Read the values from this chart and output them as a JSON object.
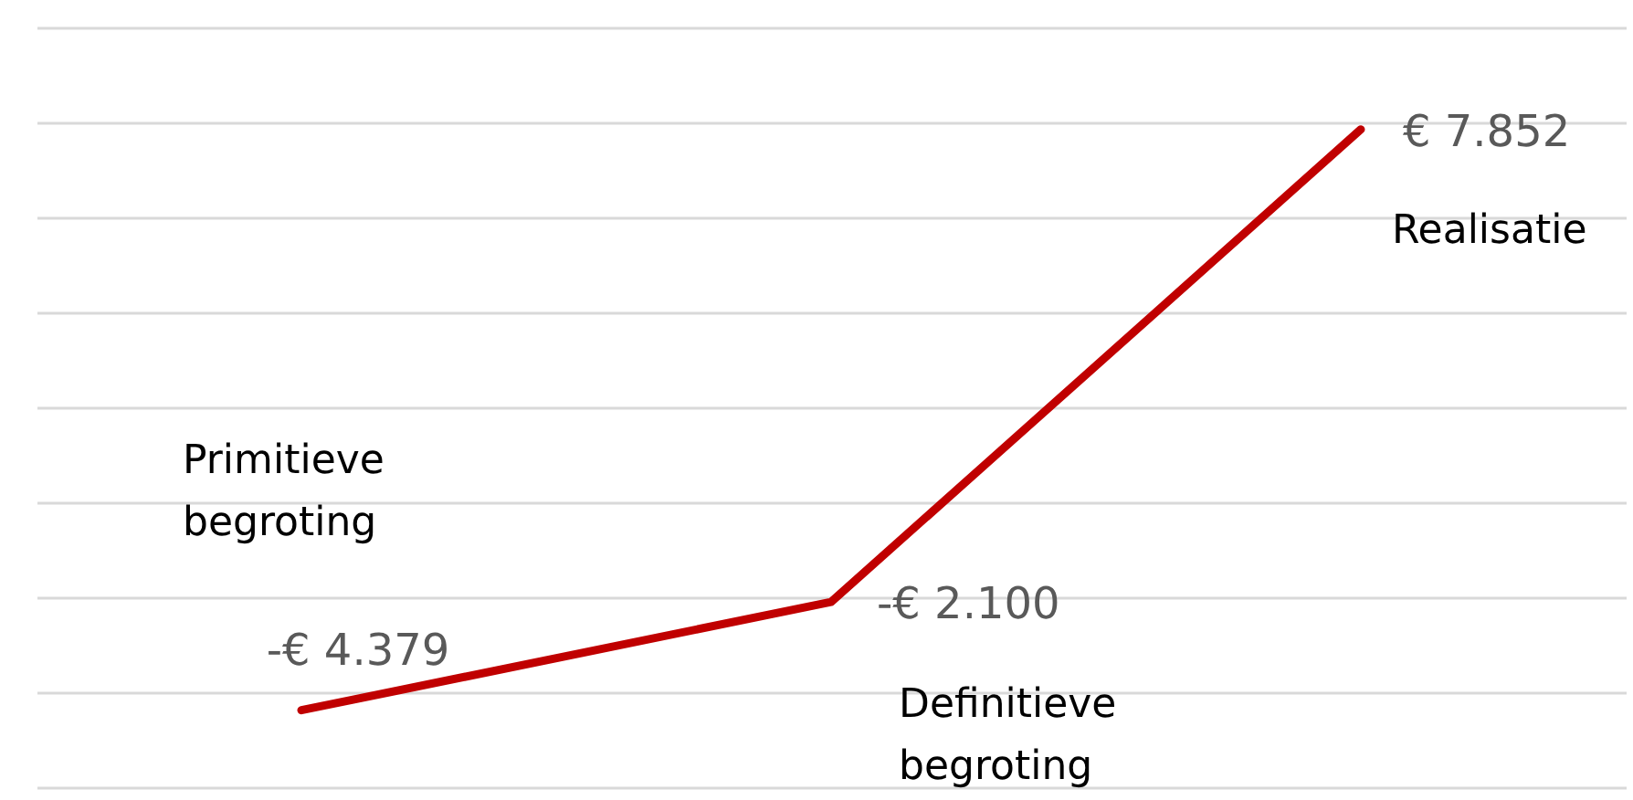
{
  "chart_data": {
    "type": "line",
    "categories": [
      "Primitieve begroting",
      "Definitieve begroting",
      "Realisatie"
    ],
    "series": [
      {
        "color": "#c00000",
        "values": [
          -4379,
          -2100,
          7852
        ],
        "value_labels": [
          "-€ 4.379",
          "-€ 2.100",
          "€ 7.852"
        ]
      }
    ],
    "ylim": [
      -6000,
      10000
    ],
    "yticks": [
      {
        "value": -6000,
        "label": null
      },
      {
        "value": -4000,
        "label": null
      },
      {
        "value": -2000,
        "label": null
      },
      {
        "value": 0,
        "label": null
      },
      {
        "value": 2000,
        "label": null
      },
      {
        "value": 4000,
        "label": null
      },
      {
        "value": 6000,
        "label": null
      },
      {
        "value": 8000,
        "label": null
      },
      {
        "value": 10000,
        "label": null
      }
    ],
    "grid": true,
    "tick_labels": false,
    "marker": "none",
    "line_style": "solid"
  }
}
